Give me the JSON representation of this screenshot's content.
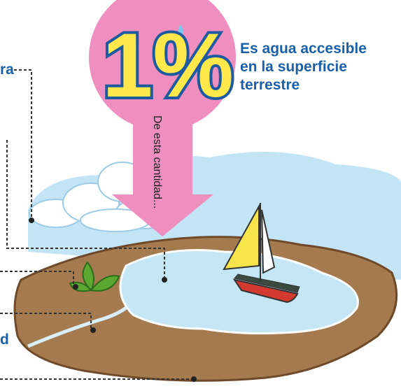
{
  "headline": {
    "percent": "1%",
    "lines": [
      "Es agua accesible",
      "en la superficie",
      "terrestre"
    ]
  },
  "arrow_text": "De esta cantidad...",
  "cropped_labels": [
    "ra",
    "d"
  ]
}
